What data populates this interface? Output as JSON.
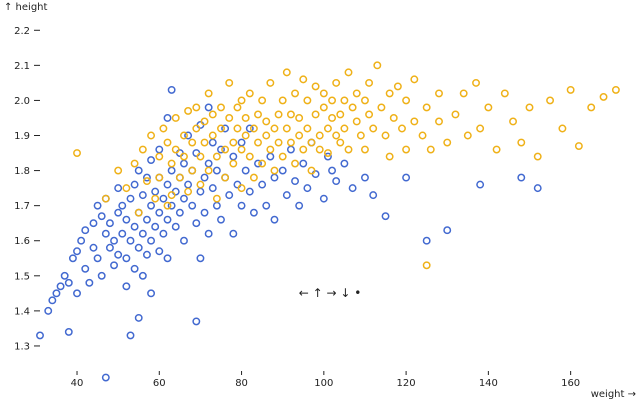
{
  "chart_data": {
    "type": "scatter",
    "title": "",
    "xlabel": "weight →",
    "ylabel": "↑ height",
    "xlim": [
      31,
      172
    ],
    "ylim": [
      1.24,
      2.235
    ],
    "xticks": [
      40,
      60,
      80,
      100,
      120,
      140,
      160
    ],
    "yticks": [
      1.3,
      1.4,
      1.5,
      1.6,
      1.7,
      1.8,
      1.9,
      2.0,
      2.1,
      2.2
    ],
    "xtick_labels": [
      "40",
      "60",
      "80",
      "100",
      "120",
      "140",
      "160"
    ],
    "ytick_labels": [
      "1.3",
      "1.4",
      "1.5",
      "1.6",
      "1.7",
      "1.8",
      "1.9",
      "2.0",
      "2.1",
      "2.2"
    ],
    "grid": false,
    "annotation": "← ↑ → ↓ •",
    "series": [
      {
        "color": "#4269d0",
        "points": [
          [
            31,
            1.33
          ],
          [
            33,
            1.4
          ],
          [
            34,
            1.43
          ],
          [
            35,
            1.45
          ],
          [
            36,
            1.47
          ],
          [
            37,
            1.5
          ],
          [
            38,
            1.48
          ],
          [
            38,
            1.34
          ],
          [
            39,
            1.55
          ],
          [
            40,
            1.57
          ],
          [
            40,
            1.45
          ],
          [
            41,
            1.6
          ],
          [
            42,
            1.63
          ],
          [
            42,
            1.52
          ],
          [
            43,
            1.48
          ],
          [
            44,
            1.65
          ],
          [
            44,
            1.58
          ],
          [
            45,
            1.7
          ],
          [
            45,
            1.55
          ],
          [
            46,
            1.67
          ],
          [
            46,
            1.5
          ],
          [
            47,
            1.62
          ],
          [
            47,
            1.72
          ],
          [
            47,
            1.21
          ],
          [
            48,
            1.58
          ],
          [
            48,
            1.65
          ],
          [
            49,
            1.53
          ],
          [
            49,
            1.6
          ],
          [
            50,
            1.68
          ],
          [
            50,
            1.75
          ],
          [
            50,
            1.56
          ],
          [
            51,
            1.62
          ],
          [
            51,
            1.7
          ],
          [
            52,
            1.55
          ],
          [
            52,
            1.66
          ],
          [
            52,
            1.47
          ],
          [
            53,
            1.72
          ],
          [
            53,
            1.6
          ],
          [
            53,
            1.33
          ],
          [
            54,
            1.64
          ],
          [
            54,
            1.76
          ],
          [
            54,
            1.52
          ],
          [
            55,
            1.58
          ],
          [
            55,
            1.68
          ],
          [
            55,
            1.8
          ],
          [
            55,
            1.38
          ],
          [
            56,
            1.62
          ],
          [
            56,
            1.73
          ],
          [
            56,
            1.5
          ],
          [
            57,
            1.66
          ],
          [
            57,
            1.78
          ],
          [
            57,
            1.56
          ],
          [
            58,
            1.7
          ],
          [
            58,
            1.6
          ],
          [
            58,
            1.83
          ],
          [
            58,
            1.45
          ],
          [
            59,
            1.74
          ],
          [
            59,
            1.64
          ],
          [
            60,
            1.68
          ],
          [
            60,
            1.78
          ],
          [
            60,
            1.57
          ],
          [
            60,
            1.86
          ],
          [
            61,
            1.72
          ],
          [
            61,
            1.62
          ],
          [
            62,
            1.76
          ],
          [
            62,
            1.66
          ],
          [
            62,
            1.55
          ],
          [
            62,
            1.95
          ],
          [
            63,
            1.8
          ],
          [
            63,
            1.7
          ],
          [
            63,
            2.03
          ],
          [
            64,
            1.74
          ],
          [
            64,
            1.64
          ],
          [
            65,
            1.78
          ],
          [
            65,
            1.85
          ],
          [
            65,
            1.68
          ],
          [
            66,
            1.72
          ],
          [
            66,
            1.82
          ],
          [
            66,
            1.6
          ],
          [
            67,
            1.76
          ],
          [
            67,
            1.9
          ],
          [
            68,
            1.7
          ],
          [
            68,
            1.8
          ],
          [
            69,
            1.65
          ],
          [
            69,
            1.85
          ],
          [
            69,
            1.37
          ],
          [
            70,
            1.74
          ],
          [
            70,
            1.93
          ],
          [
            70,
            1.55
          ],
          [
            71,
            1.78
          ],
          [
            71,
            1.68
          ],
          [
            72,
            1.82
          ],
          [
            72,
            1.98
          ],
          [
            72,
            1.62
          ],
          [
            73,
            1.75
          ],
          [
            73,
            1.88
          ],
          [
            74,
            1.7
          ],
          [
            74,
            1.8
          ],
          [
            75,
            1.86
          ],
          [
            75,
            1.66
          ],
          [
            76,
            1.78
          ],
          [
            76,
            1.92
          ],
          [
            77,
            1.73
          ],
          [
            78,
            1.84
          ],
          [
            78,
            1.62
          ],
          [
            79,
            1.76
          ],
          [
            80,
            1.88
          ],
          [
            80,
            1.7
          ],
          [
            81,
            1.8
          ],
          [
            82,
            1.74
          ],
          [
            82,
            1.92
          ],
          [
            83,
            1.68
          ],
          [
            84,
            1.82
          ],
          [
            85,
            1.76
          ],
          [
            86,
            1.7
          ],
          [
            87,
            1.84
          ],
          [
            88,
            1.78
          ],
          [
            88,
            1.66
          ],
          [
            90,
            1.8
          ],
          [
            91,
            1.73
          ],
          [
            92,
            1.86
          ],
          [
            93,
            1.77
          ],
          [
            94,
            1.7
          ],
          [
            95,
            1.82
          ],
          [
            96,
            1.75
          ],
          [
            97,
            1.88
          ],
          [
            98,
            1.79
          ],
          [
            100,
            1.72
          ],
          [
            101,
            1.84
          ],
          [
            102,
            1.8
          ],
          [
            103,
            1.77
          ],
          [
            105,
            1.82
          ],
          [
            107,
            1.75
          ],
          [
            110,
            1.78
          ],
          [
            112,
            1.73
          ],
          [
            115,
            1.67
          ],
          [
            120,
            1.78
          ],
          [
            125,
            1.6
          ],
          [
            130,
            1.63
          ],
          [
            138,
            1.76
          ],
          [
            148,
            1.78
          ],
          [
            152,
            1.75
          ]
        ]
      },
      {
        "color": "#efb118",
        "points": [
          [
            40,
            1.85
          ],
          [
            47,
            1.72
          ],
          [
            50,
            1.8
          ],
          [
            52,
            1.75
          ],
          [
            54,
            1.82
          ],
          [
            55,
            1.68
          ],
          [
            56,
            1.86
          ],
          [
            57,
            1.77
          ],
          [
            58,
            1.9
          ],
          [
            59,
            1.72
          ],
          [
            60,
            1.84
          ],
          [
            60,
            1.78
          ],
          [
            61,
            1.92
          ],
          [
            62,
            1.88
          ],
          [
            62,
            1.7
          ],
          [
            63,
            1.82
          ],
          [
            64,
            1.86
          ],
          [
            64,
            1.95
          ],
          [
            65,
            1.78
          ],
          [
            66,
            1.9
          ],
          [
            66,
            1.84
          ],
          [
            67,
            1.97
          ],
          [
            67,
            1.74
          ],
          [
            68,
            1.88
          ],
          [
            68,
            1.8
          ],
          [
            69,
            1.92
          ],
          [
            69,
            1.98
          ],
          [
            70,
            1.84
          ],
          [
            70,
            1.76
          ],
          [
            71,
            1.94
          ],
          [
            71,
            1.88
          ],
          [
            72,
            1.8
          ],
          [
            72,
            2.02
          ],
          [
            73,
            1.9
          ],
          [
            73,
            1.96
          ],
          [
            74,
            1.84
          ],
          [
            74,
            1.72
          ],
          [
            75,
            1.92
          ],
          [
            75,
            1.98
          ],
          [
            76,
            1.86
          ],
          [
            76,
            1.78
          ],
          [
            77,
            1.95
          ],
          [
            77,
            2.05
          ],
          [
            78,
            1.88
          ],
          [
            78,
            1.82
          ],
          [
            79,
            1.92
          ],
          [
            79,
            1.98
          ],
          [
            80,
            1.86
          ],
          [
            80,
            2.0
          ],
          [
            80,
            1.75
          ],
          [
            81,
            1.9
          ],
          [
            81,
            1.95
          ],
          [
            82,
            1.84
          ],
          [
            82,
            2.02
          ],
          [
            83,
            1.92
          ],
          [
            83,
            1.78
          ],
          [
            84,
            1.88
          ],
          [
            84,
            1.96
          ],
          [
            85,
            1.82
          ],
          [
            85,
            2.0
          ],
          [
            86,
            1.9
          ],
          [
            86,
            1.94
          ],
          [
            87,
            1.86
          ],
          [
            87,
            2.05
          ],
          [
            88,
            1.92
          ],
          [
            88,
            1.8
          ],
          [
            89,
            1.96
          ],
          [
            89,
            1.88
          ],
          [
            90,
            2.0
          ],
          [
            90,
            1.84
          ],
          [
            91,
            1.92
          ],
          [
            91,
            2.08
          ],
          [
            92,
            1.88
          ],
          [
            92,
            1.96
          ],
          [
            93,
            1.82
          ],
          [
            93,
            2.02
          ],
          [
            94,
            1.9
          ],
          [
            94,
            1.95
          ],
          [
            95,
            1.86
          ],
          [
            95,
            2.06
          ],
          [
            96,
            1.92
          ],
          [
            96,
            2.0
          ],
          [
            97,
            1.88
          ],
          [
            97,
            1.8
          ],
          [
            98,
            1.96
          ],
          [
            98,
            2.04
          ],
          [
            99,
            1.9
          ],
          [
            99,
            1.86
          ],
          [
            100,
            1.98
          ],
          [
            100,
            2.02
          ],
          [
            101,
            1.92
          ],
          [
            101,
            1.85
          ],
          [
            102,
            2.0
          ],
          [
            102,
            1.95
          ],
          [
            103,
            1.9
          ],
          [
            103,
            2.05
          ],
          [
            104,
            1.96
          ],
          [
            104,
            1.88
          ],
          [
            105,
            2.0
          ],
          [
            105,
            1.92
          ],
          [
            106,
            2.08
          ],
          [
            106,
            1.86
          ],
          [
            107,
            1.98
          ],
          [
            108,
            1.94
          ],
          [
            108,
            2.02
          ],
          [
            109,
            1.9
          ],
          [
            110,
            2.0
          ],
          [
            110,
            1.86
          ],
          [
            111,
            2.05
          ],
          [
            111,
            1.96
          ],
          [
            112,
            1.92
          ],
          [
            113,
            2.1
          ],
          [
            114,
            1.98
          ],
          [
            115,
            1.9
          ],
          [
            116,
            2.02
          ],
          [
            116,
            1.84
          ],
          [
            117,
            1.95
          ],
          [
            118,
            2.04
          ],
          [
            119,
            1.92
          ],
          [
            120,
            1.86
          ],
          [
            120,
            2.0
          ],
          [
            122,
            1.94
          ],
          [
            122,
            2.06
          ],
          [
            124,
            1.9
          ],
          [
            125,
            1.98
          ],
          [
            126,
            1.86
          ],
          [
            128,
            1.94
          ],
          [
            128,
            2.02
          ],
          [
            130,
            1.88
          ],
          [
            132,
            1.96
          ],
          [
            134,
            2.02
          ],
          [
            135,
            1.9
          ],
          [
            137,
            2.05
          ],
          [
            138,
            1.92
          ],
          [
            140,
            1.98
          ],
          [
            142,
            1.86
          ],
          [
            144,
            2.02
          ],
          [
            146,
            1.94
          ],
          [
            148,
            1.88
          ],
          [
            150,
            1.98
          ],
          [
            152,
            1.84
          ],
          [
            155,
            2.0
          ],
          [
            158,
            1.92
          ],
          [
            160,
            2.03
          ],
          [
            162,
            1.87
          ],
          [
            165,
            1.98
          ],
          [
            168,
            2.01
          ],
          [
            171,
            2.03
          ],
          [
            125,
            1.53
          ],
          [
            63,
            1.73
          ]
        ]
      }
    ]
  }
}
